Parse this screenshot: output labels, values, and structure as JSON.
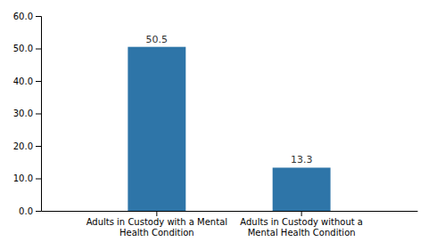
{
  "chart_data": {
    "type": "bar",
    "categories": [
      "Adults in Custody with a Mental\nHealth Condition",
      "Adults in Custody without a\nMental Health Condition"
    ],
    "values": [
      50.5,
      13.3
    ],
    "color": "#2e75a8",
    "ylim": [
      0,
      60
    ],
    "yticks": [
      {
        "value": 0,
        "label": "0.0"
      },
      {
        "value": 10,
        "label": "10.0"
      },
      {
        "value": 20,
        "label": "20.0"
      },
      {
        "value": 30,
        "label": "30.0"
      },
      {
        "value": 40,
        "label": "40.0"
      },
      {
        "value": 50,
        "label": "50.0"
      },
      {
        "value": 60,
        "label": "60.0"
      }
    ],
    "grid": false,
    "data_labels": true
  }
}
